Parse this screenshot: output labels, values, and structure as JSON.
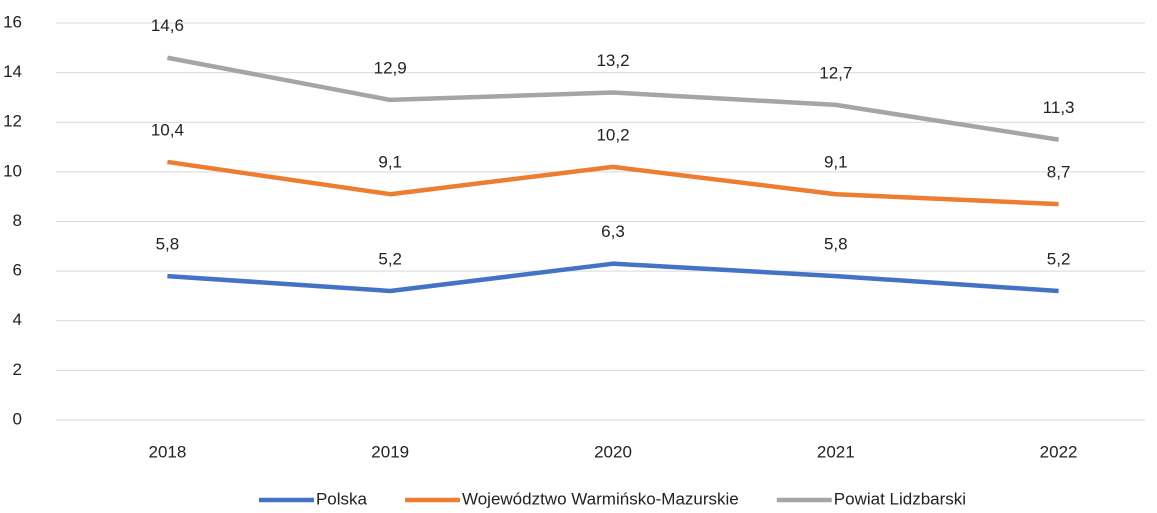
{
  "chart_data": {
    "type": "line",
    "categories": [
      "2018",
      "2019",
      "2020",
      "2021",
      "2022"
    ],
    "series": [
      {
        "name": "Polska",
        "color": "#4472c4",
        "values": [
          5.8,
          5.2,
          6.3,
          5.8,
          5.2
        ],
        "value_labels": [
          "5,8",
          "5,2",
          "6,3",
          "5,8",
          "5,2"
        ]
      },
      {
        "name": "Województwo Warmińsko-Mazurskie",
        "color": "#ed7d31",
        "values": [
          10.4,
          9.1,
          10.2,
          9.1,
          8.7
        ],
        "value_labels": [
          "10,4",
          "9,1",
          "10,2",
          "9,1",
          "8,7"
        ]
      },
      {
        "name": "Powiat Lidzbarski",
        "color": "#a5a5a5",
        "values": [
          14.6,
          12.9,
          13.2,
          12.7,
          11.3
        ],
        "value_labels": [
          "14,6",
          "12,9",
          "13,2",
          "12,7",
          "11,3"
        ]
      }
    ],
    "ylim": [
      0,
      16
    ],
    "yticks": [
      0,
      2,
      4,
      6,
      8,
      10,
      12,
      14,
      16
    ],
    "grid": true,
    "legend": "bottom"
  }
}
